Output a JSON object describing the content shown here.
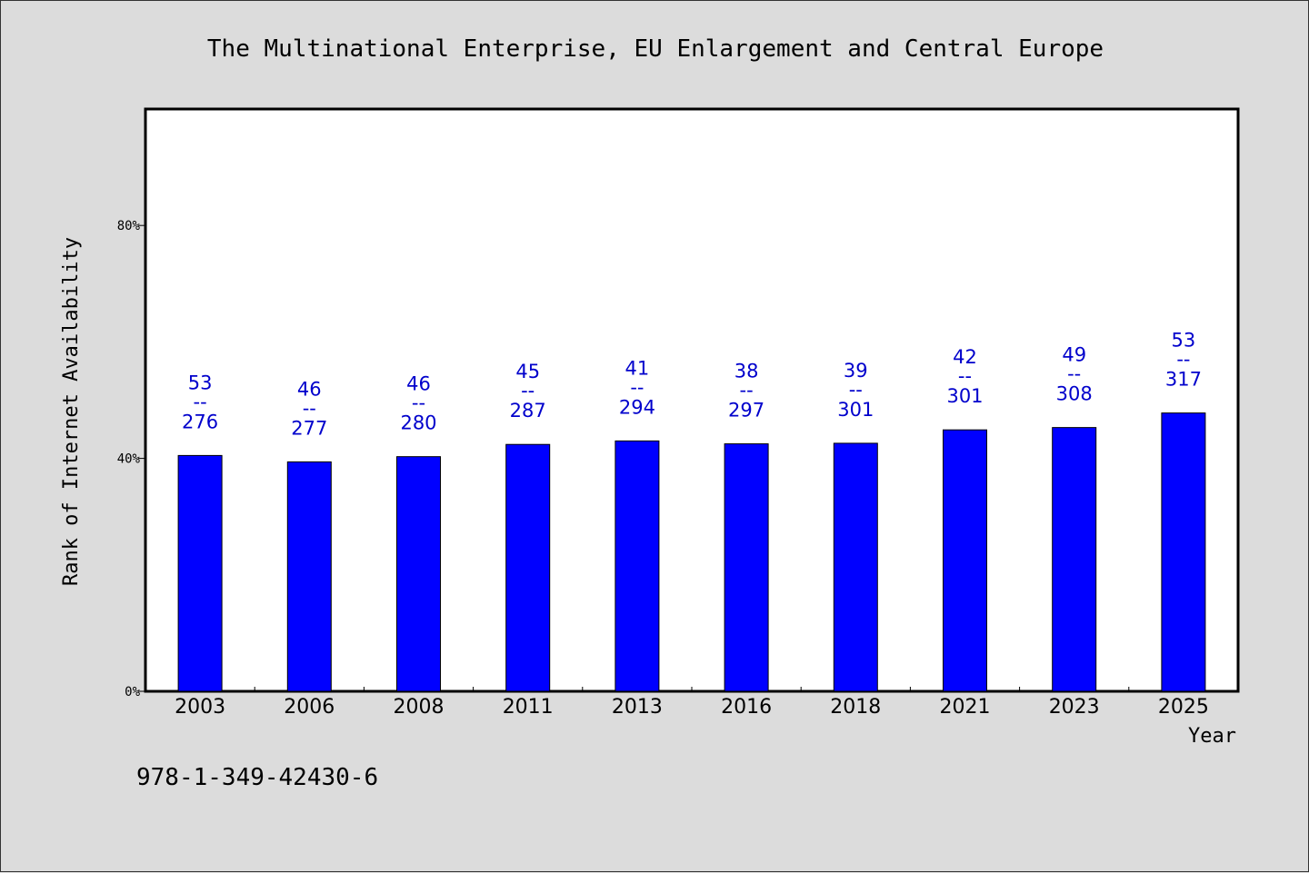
{
  "chart_data": {
    "type": "bar",
    "title": "The Multinational Enterprise, EU Enlargement and Central Europe",
    "xlabel": "Year",
    "ylabel": "Rank of Internet Availability",
    "ylim": [
      0,
      100
    ],
    "yticks": [
      0,
      40,
      80
    ],
    "ytick_labels": [
      "0%",
      "40%",
      "80%"
    ],
    "categories": [
      "2003",
      "2006",
      "2008",
      "2011",
      "2013",
      "2016",
      "2018",
      "2021",
      "2023",
      "2025"
    ],
    "series": [
      {
        "values": [
          40.5,
          39.4,
          40.3,
          42.4,
          43.0,
          42.5,
          42.6,
          44.9,
          45.3,
          47.8
        ]
      }
    ],
    "bar_labels": [
      {
        "top": "53",
        "sep": "--",
        "bottom": "276"
      },
      {
        "top": "46",
        "sep": "--",
        "bottom": "277"
      },
      {
        "top": "46",
        "sep": "--",
        "bottom": "280"
      },
      {
        "top": "45",
        "sep": "--",
        "bottom": "287"
      },
      {
        "top": "41",
        "sep": "--",
        "bottom": "294"
      },
      {
        "top": "38",
        "sep": "--",
        "bottom": "297"
      },
      {
        "top": "39",
        "sep": "--",
        "bottom": "301"
      },
      {
        "top": "42",
        "sep": "--",
        "bottom": "301"
      },
      {
        "top": "49",
        "sep": "--",
        "bottom": "308"
      },
      {
        "top": "53",
        "sep": "--",
        "bottom": "317"
      }
    ],
    "colors": {
      "bar": "#0000ff",
      "label": "#0000cc",
      "background": "#dcdcdc",
      "plot_background": "#ffffff"
    },
    "grid": false,
    "legend": "none"
  },
  "footer": {
    "isbn": "978-1-349-42430-6"
  }
}
